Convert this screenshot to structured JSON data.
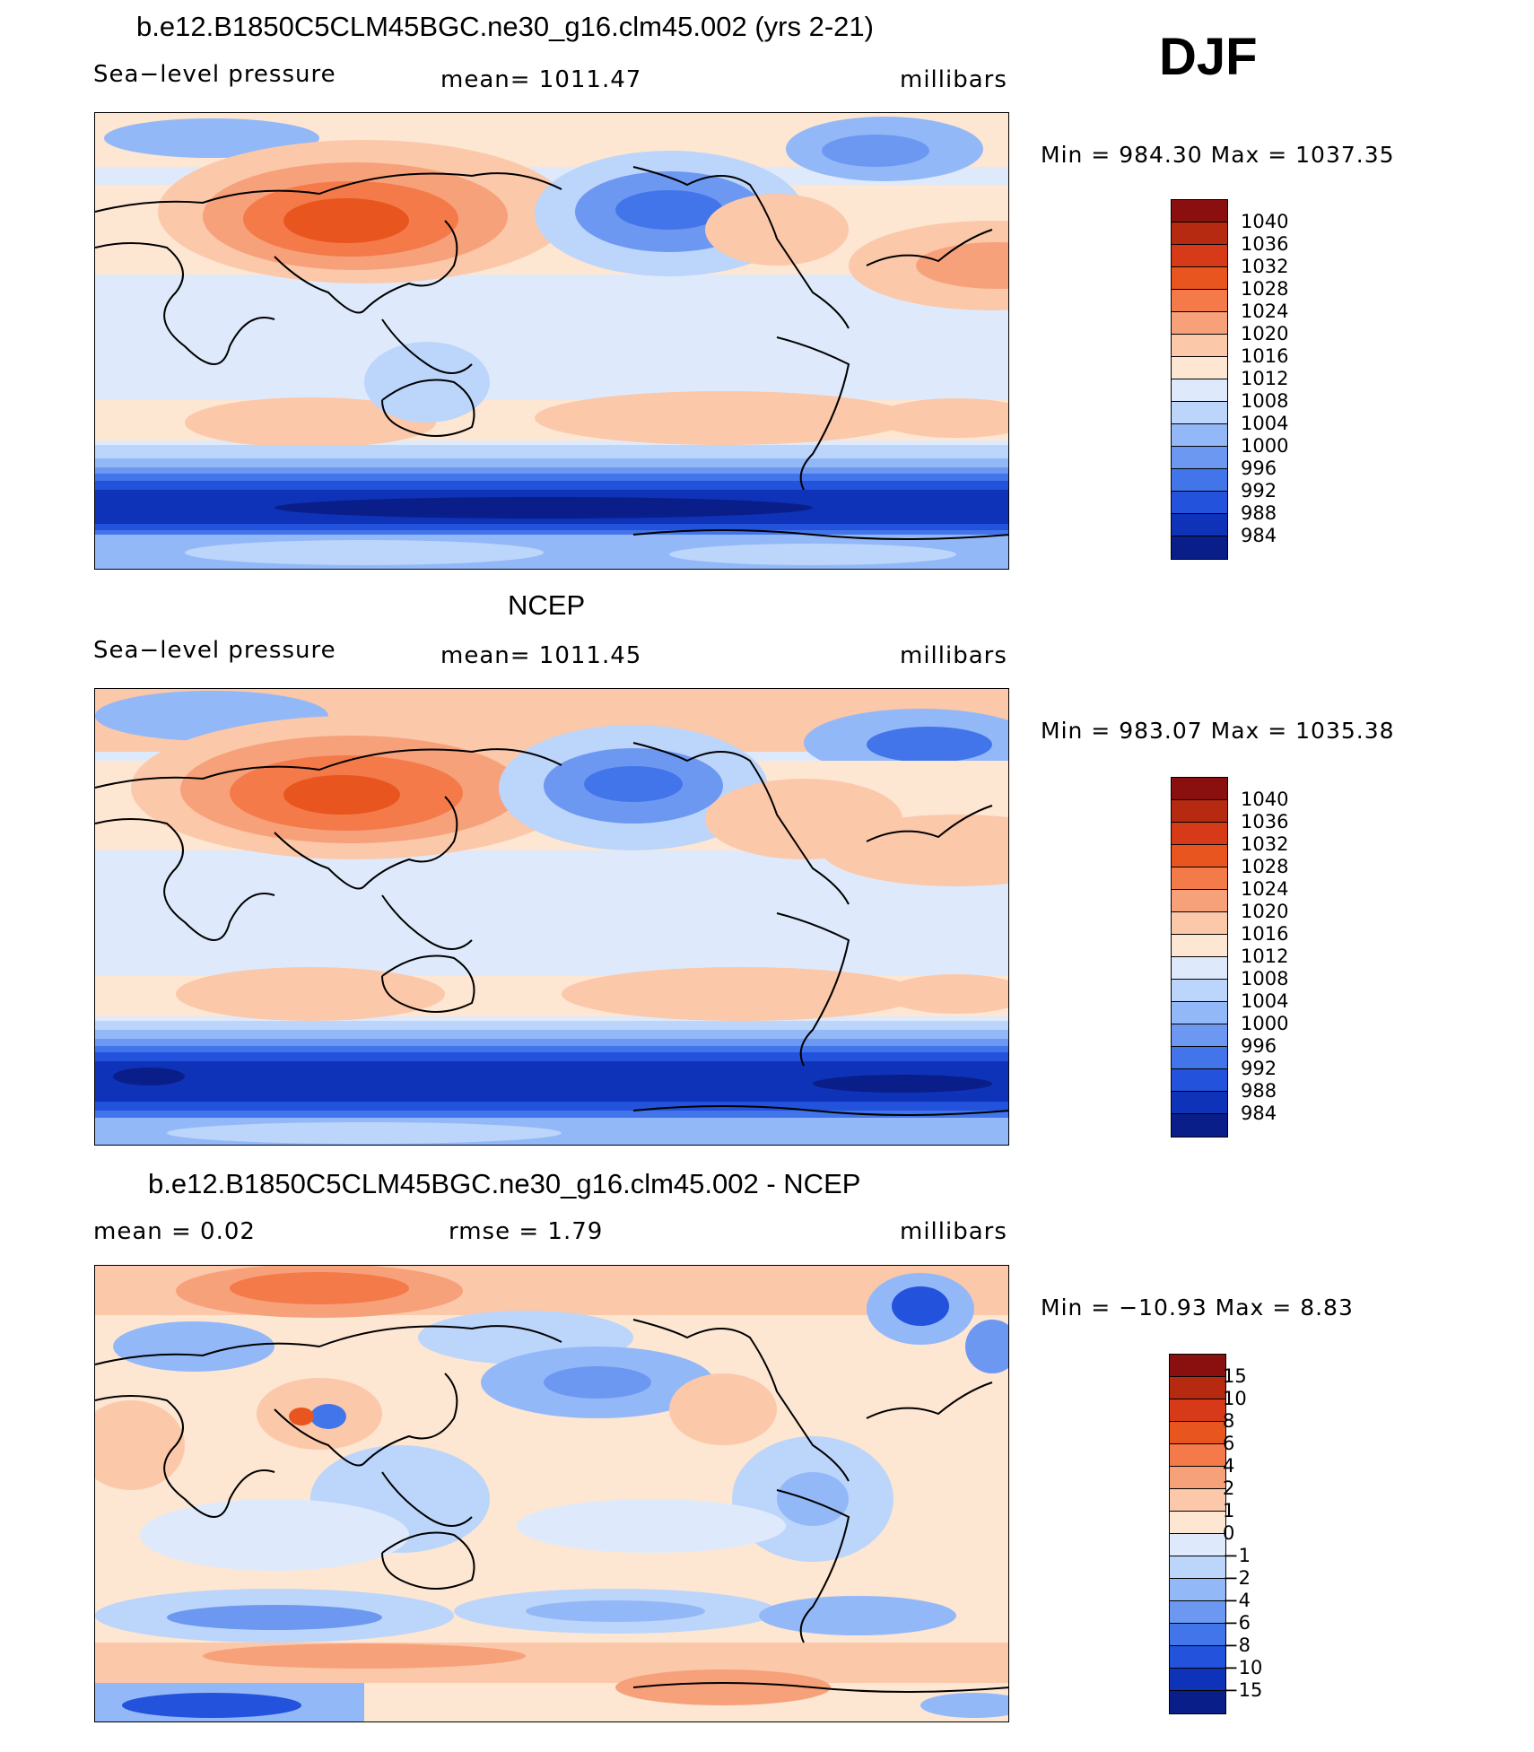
{
  "season": "DJF",
  "panels": [
    {
      "title": "b.e12.B1850C5CLM45BGC.ne30_g16.clm45.002 (yrs 2-21)",
      "left_label": "Sea−level pressure",
      "center_label": "mean=  1011.47",
      "units": "millibars",
      "min_max": "Min  =  984.30  Max  =  1037.35",
      "colorbar": {
        "labels": [
          "1040",
          "1036",
          "1032",
          "1028",
          "1024",
          "1020",
          "1016",
          "1012",
          "1008",
          "1004",
          "1000",
          "996",
          "992",
          "988",
          "984"
        ],
        "colors": [
          "#8a0f0f",
          "#b52a10",
          "#d63a18",
          "#e9551e",
          "#f47a4a",
          "#f7a17b",
          "#fbc8aa",
          "#fde6d2",
          "#deeafb",
          "#bcd5fb",
          "#93b8f8",
          "#6d98f2",
          "#4375ea",
          "#2352dc",
          "#0f33b8",
          "#0a1e8a"
        ]
      }
    },
    {
      "title": "NCEP",
      "left_label": "Sea−level pressure",
      "center_label": "mean=  1011.45",
      "units": "millibars",
      "min_max": "Min  =  983.07  Max  =  1035.38",
      "colorbar": {
        "labels": [
          "1040",
          "1036",
          "1032",
          "1028",
          "1024",
          "1020",
          "1016",
          "1012",
          "1008",
          "1004",
          "1000",
          "996",
          "992",
          "988",
          "984"
        ],
        "colors": [
          "#8a0f0f",
          "#b52a10",
          "#d63a18",
          "#e9551e",
          "#f47a4a",
          "#f7a17b",
          "#fbc8aa",
          "#fde6d2",
          "#deeafb",
          "#bcd5fb",
          "#93b8f8",
          "#6d98f2",
          "#4375ea",
          "#2352dc",
          "#0f33b8",
          "#0a1e8a"
        ]
      }
    },
    {
      "title": "b.e12.B1850C5CLM45BGC.ne30_g16.clm45.002 - NCEP",
      "left_label": "mean  =     0.02",
      "center_label": "rmse  =     1.79",
      "units": "millibars",
      "min_max": "Min  =  −10.93  Max  =     8.83",
      "colorbar": {
        "labels": [
          "15",
          "10",
          "8",
          "6",
          "4",
          "2",
          "1",
          "0",
          "−1",
          "−2",
          "−4",
          "−6",
          "−8",
          "−10",
          "−15"
        ],
        "colors": [
          "#8a0f0f",
          "#b52a10",
          "#d63a18",
          "#e9551e",
          "#f47a4a",
          "#f7a17b",
          "#fbc8aa",
          "#fde6d2",
          "#deeafb",
          "#bcd5fb",
          "#93b8f8",
          "#6d98f2",
          "#4375ea",
          "#2352dc",
          "#0f33b8",
          "#0a1e8a"
        ]
      }
    }
  ]
}
